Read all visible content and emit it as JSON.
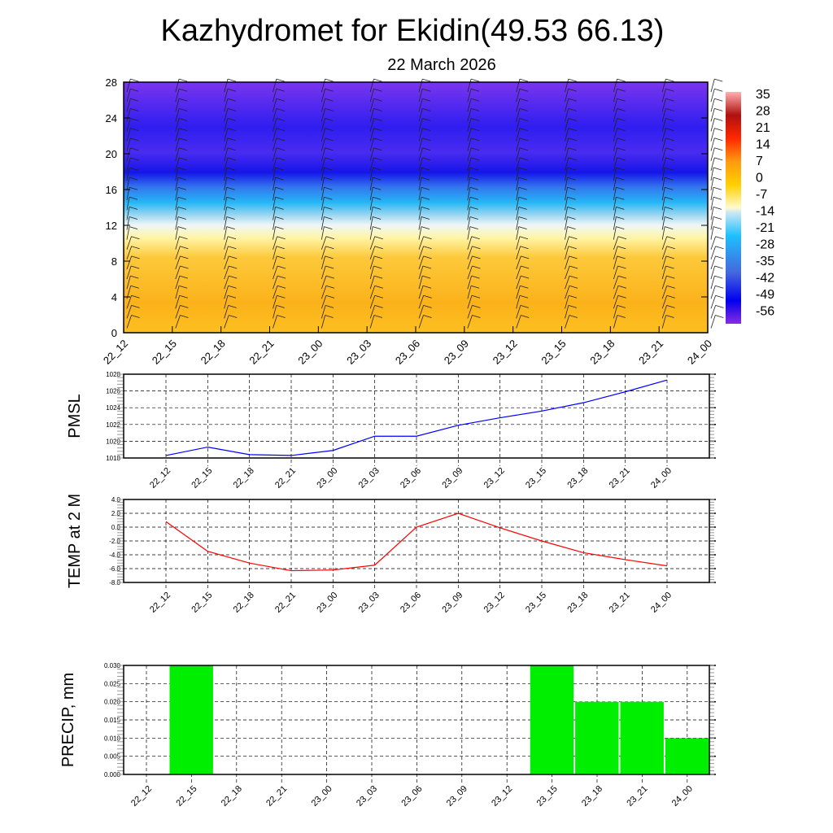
{
  "title": "Kazhydromet for Ekidin(49.53 66.13)",
  "subtitle": "22 March 2026",
  "chart_data": [
    {
      "type": "heatmap",
      "name": "cross-section",
      "x": [
        "22_12",
        "22_15",
        "22_18",
        "22_21",
        "23_00",
        "23_03",
        "23_06",
        "23_09",
        "23_12",
        "23_15",
        "23_18",
        "23_21",
        "24_00"
      ],
      "ylim": [
        0,
        28
      ],
      "yticks": [
        "0",
        "4",
        "8",
        "12",
        "16",
        "20",
        "24",
        "28"
      ],
      "colorbar_labels": [
        "35",
        "28",
        "21",
        "14",
        "7",
        "0",
        "-7",
        "-14",
        "-21",
        "-28",
        "-35",
        "-42",
        "-49",
        "-56"
      ],
      "colorbar_range": [
        -60,
        38
      ]
    },
    {
      "type": "line",
      "name": "pmsl",
      "ylabel": "PMSL",
      "ylim": [
        1018,
        1028
      ],
      "yticks": [
        "1018",
        "1020",
        "1022",
        "1024",
        "1026",
        "1028"
      ],
      "x": [
        "22_12",
        "22_15",
        "22_18",
        "22_21",
        "23_00",
        "23_03",
        "23_06",
        "23_09",
        "23_12",
        "23_15",
        "23_18",
        "23_21",
        "24_00"
      ],
      "values": [
        1018.3,
        1019.3,
        1018.4,
        1018.3,
        1018.9,
        1020.6,
        1020.6,
        1021.9,
        1022.8,
        1023.6,
        1024.6,
        1025.9,
        1027.3
      ],
      "color": "#0000ff"
    },
    {
      "type": "line",
      "name": "temp",
      "ylabel": "TEMP at 2 M",
      "ylim": [
        -8,
        4
      ],
      "yticks": [
        "-8.0",
        "-6.0",
        "-4.0",
        "-2.0",
        "0.0",
        "2.0",
        "4.0"
      ],
      "x": [
        "22_12",
        "22_15",
        "22_18",
        "22_21",
        "23_00",
        "23_03",
        "23_06",
        "23_09",
        "23_12",
        "23_15",
        "23_18",
        "23_21",
        "24_00"
      ],
      "values": [
        0.8,
        -3.5,
        -5.2,
        -6.3,
        -6.2,
        -5.5,
        0.0,
        2.0,
        -0.1,
        -2.0,
        -3.7,
        -4.7,
        -5.6
      ],
      "color": "#ff0000"
    },
    {
      "type": "bar",
      "name": "precip",
      "ylabel": "PRECIP, mm",
      "ylim": [
        0,
        0.03
      ],
      "yticks": [
        "0.000",
        "0.005",
        "0.010",
        "0.015",
        "0.020",
        "0.025",
        "0.030"
      ],
      "categories": [
        "22_12",
        "22_15",
        "22_18",
        "22_21",
        "23_00",
        "23_03",
        "23_06",
        "23_09",
        "23_12",
        "23_15",
        "23_18",
        "23_21",
        "24_00"
      ],
      "values": [
        0,
        0.03,
        0,
        0,
        0,
        0,
        0,
        0,
        0,
        0.03,
        0.02,
        0.02,
        0.01
      ],
      "color": "#00ee00"
    }
  ]
}
